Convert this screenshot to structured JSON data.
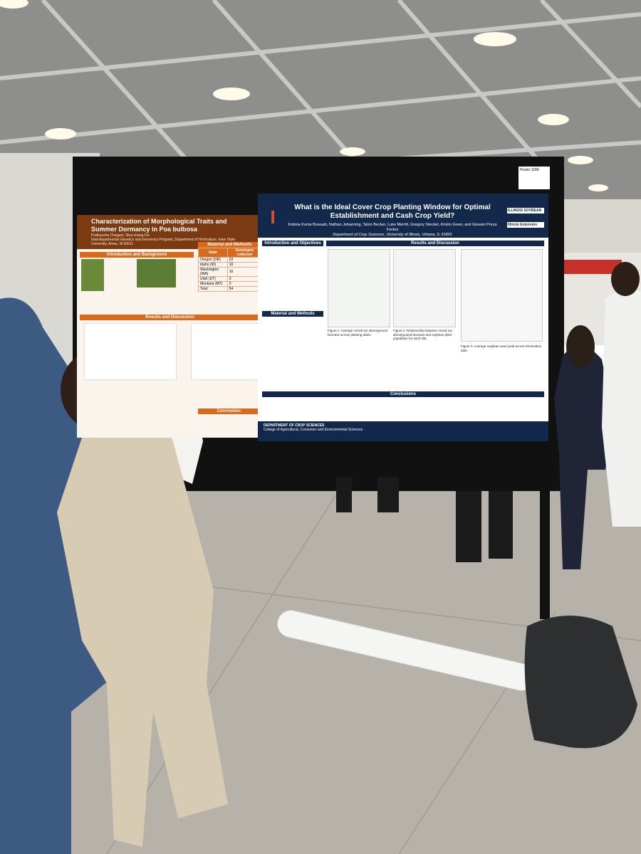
{
  "poster_tag": "Poster 1189",
  "left_poster": {
    "title": "Characterization of Morphological Traits and Summer Dormancy in Poa bulbosa",
    "authors": "Prathyusha Chegeni, Shui-zhang Fei",
    "affiliation": "Interdepartmental Genetics and Genomics Program, Department of Horticulture, Iowa State University, Ames, IA 50011",
    "sections": [
      "Introduction and Background",
      "Material and Methods:",
      "Results and Discussion:",
      "Conclusion:"
    ],
    "table": {
      "header": [
        "State",
        "Genotypes collected"
      ],
      "rows": [
        [
          "Oregon (OR)",
          "23"
        ],
        [
          "Idaho (ID)",
          "10"
        ],
        [
          "Washington (WA)",
          "16"
        ],
        [
          "Utah (UT)",
          "3"
        ],
        [
          "Montana (MT)",
          "2"
        ],
        [
          "Total",
          "54"
        ]
      ]
    }
  },
  "right_poster": {
    "title": "What is the Ideal Cover Crop Planting Window for Optimal Establishment and Cash Crop Yield?",
    "authors": "Kobina Kuma Bowuah, Nathan Johanning, Talon Becker, Luke Merritt, Gregory Steckel, Kristin Greer, and Giovani Preza Fontes",
    "affiliation": "Department of Crop Sciences, University of Illinois, Urbana, IL 61801",
    "logos": [
      "ILLINOIS SOYBEAN",
      "Illinois Extension"
    ],
    "sections": [
      "Introduction and Objectives",
      "Material and Methods",
      "Results and Discussion",
      "Conclusions"
    ],
    "figure_captions": [
      "Figure 1. Average cereal rye aboveground biomass across planting dates.",
      "Figure 2. Relationship between cereal rye aboveground biomass and soybean plant population for each site.",
      "Figure 3. Average soybean seed yield across termination date."
    ],
    "footer": [
      "DEPARTMENT OF CROP SCIENCES",
      "College of Agricultural, Consumer and Environmental Sciences"
    ]
  }
}
